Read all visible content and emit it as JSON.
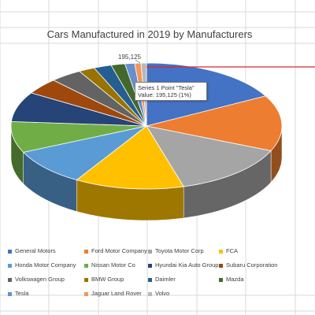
{
  "chart_data": {
    "type": "pie",
    "title": "Cars Manufactured in 2019 by Manufacturers",
    "categories": [
      "General Motors",
      "Ford Motor Company",
      "Toyota Motor Corp",
      "FCA",
      "Honda Motor Company",
      "Nissan Motor Co",
      "Hyundai Kia Auto Group",
      "Subaru Corporation",
      "Volkswagen Group",
      "BMW Group",
      "Daimler",
      "Mazda",
      "Tesla",
      "Jaguar Land Rover",
      "Volvo"
    ],
    "values": [
      2887046,
      2422589,
      2385000,
      2203663,
      1609000,
      1345000,
      1297000,
      700000,
      642000,
      324826,
      357729,
      278552,
      195125,
      128000,
      108000
    ],
    "colors": [
      "#4472C4",
      "#ED7D31",
      "#A5A5A5",
      "#FFC000",
      "#5B9BD5",
      "#70AD47",
      "#264478",
      "#9E480E",
      "#636363",
      "#997300",
      "#255E91",
      "#43682B",
      "#698ED0",
      "#F1975A",
      "#B7B7B7"
    ],
    "data_label": "195,125",
    "legend_position": "bottom"
  },
  "tooltip": {
    "line1": "Series 1 Point \"Tesla\"",
    "line2": "Value: 195,125 (1%)"
  }
}
